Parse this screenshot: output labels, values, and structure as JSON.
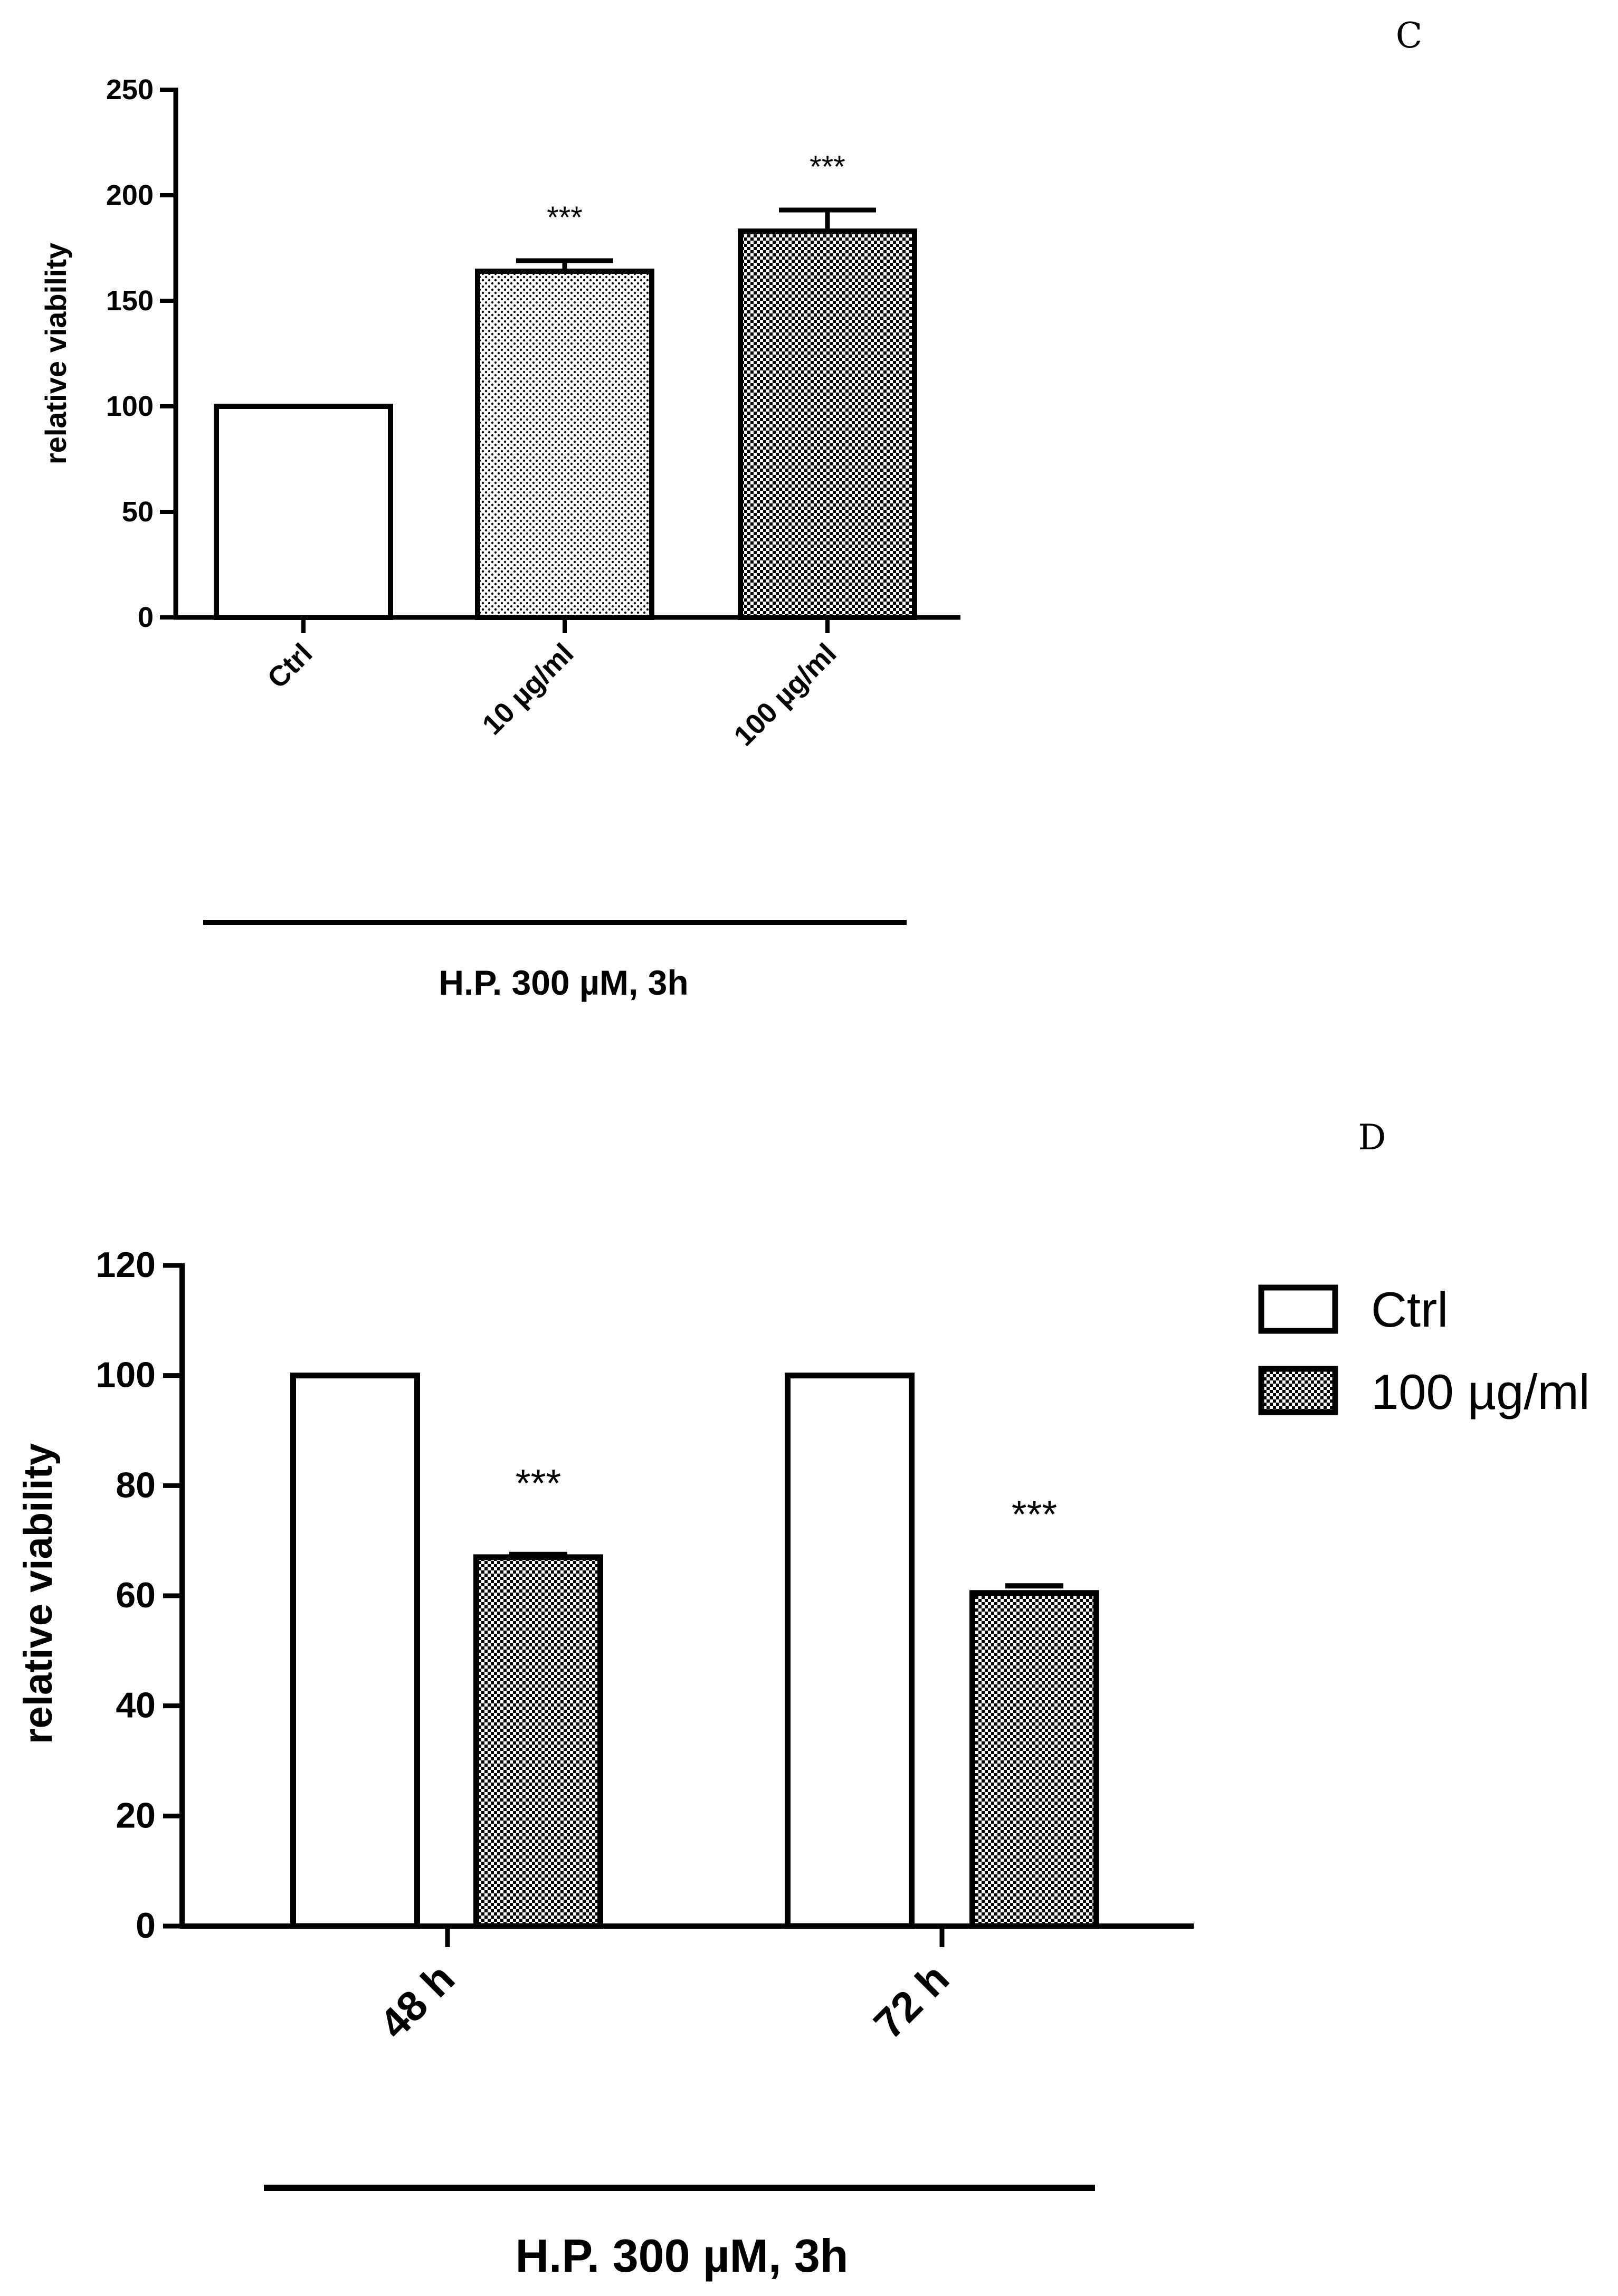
{
  "chart_data": [
    {
      "panel": "C",
      "type": "bar",
      "categories": [
        "Ctrl",
        "10 µg/ml",
        "100 µg/ml"
      ],
      "values": [
        100,
        164,
        183
      ],
      "errors": [
        0,
        5,
        10
      ],
      "significance": [
        "",
        "***",
        "***"
      ],
      "fill_patterns": [
        "white",
        "dots",
        "checker"
      ],
      "xlabel": "H.P. 300 µM, 3h",
      "ylabel": "relative viability",
      "ylim": [
        0,
        250
      ],
      "yticks": [
        0,
        50,
        100,
        150,
        200,
        250
      ]
    },
    {
      "panel": "D",
      "type": "bar",
      "categories": [
        "48 h",
        "72 h"
      ],
      "series": [
        {
          "name": "Ctrl",
          "values": [
            100,
            100
          ],
          "errors": [
            0,
            0
          ],
          "pattern": "white"
        },
        {
          "name": "100 µg/ml",
          "values": [
            67,
            60.5
          ],
          "errors": [
            0.5,
            1.3
          ],
          "pattern": "checker"
        }
      ],
      "significance": [
        "***",
        "***"
      ],
      "xlabel": "H.P. 300 µM, 3h",
      "ylabel": "relative viability",
      "ylim": [
        0,
        120
      ],
      "yticks": [
        0,
        20,
        40,
        60,
        80,
        100,
        120
      ],
      "legend": [
        "Ctrl",
        "100 µg/ml"
      ]
    }
  ]
}
